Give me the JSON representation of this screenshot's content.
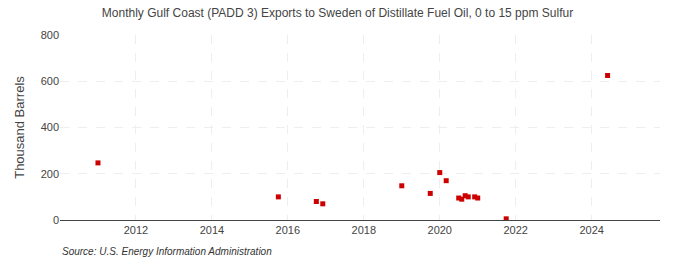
{
  "chart_data": {
    "type": "scatter",
    "title": "Monthly Gulf Coast (PADD 3) Exports to Sweden of Distillate Fuel Oil, 0 to 15 ppm Sulfur",
    "ylabel": "Thousand Barrels",
    "annotations": [
      "Source: U.S. Energy Information Administration"
    ],
    "x": [
      2011.0,
      2015.75,
      2016.75,
      2016.92,
      2019.0,
      2019.75,
      2020.0,
      2020.17,
      2020.5,
      2020.58,
      2020.67,
      2020.75,
      2020.92,
      2021.0,
      2021.75,
      2024.42
    ],
    "values": [
      247,
      100,
      80,
      70,
      148,
      115,
      205,
      170,
      95,
      90,
      105,
      100,
      100,
      95,
      5,
      625
    ],
    "color": "#cc0000",
    "marker": "square",
    "xlim": [
      2010.0,
      2025.8
    ],
    "ylim": [
      0,
      800
    ],
    "xticks": [
      2012,
      2014,
      2016,
      2018,
      2020,
      2022,
      2024
    ],
    "yticks": [
      0,
      200,
      400,
      600,
      800
    ],
    "grid": true
  }
}
